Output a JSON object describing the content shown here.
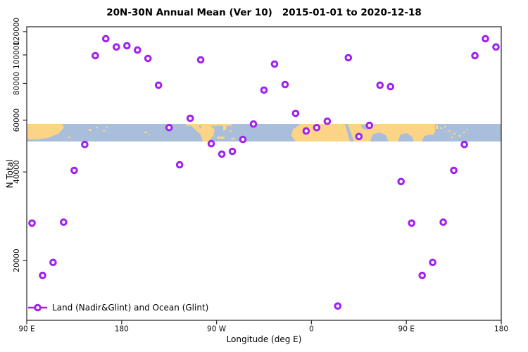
{
  "chart_data": {
    "type": "scatter",
    "title": "20N-30N Annual Mean (Ver 10)   2015-01-01 to 2020-12-18",
    "xlabel": "Longitude (deg E)",
    "ylabel": "N Total",
    "x_axis": {
      "range": [
        90,
        540
      ],
      "wraps_longitude": true,
      "ticks": [
        {
          "pos": 90,
          "label": "90 E"
        },
        {
          "pos": 180,
          "label": "180"
        },
        {
          "pos": 270,
          "label": "90 W"
        },
        {
          "pos": 360,
          "label": "0"
        },
        {
          "pos": 450,
          "label": "90 E"
        },
        {
          "pos": 540,
          "label": "180"
        }
      ]
    },
    "y_axis": {
      "scale": "log",
      "ticks": [
        20000,
        40000,
        60000,
        80000,
        100000,
        120000
      ],
      "approx_range": [
        12500,
        126000
      ],
      "grid": false
    },
    "legend": {
      "label": "Land (Nadir&Glint) and Ocean (Glint)",
      "position": "bottom-left",
      "symbol": "line-with-open-circle"
    },
    "points": [
      {
        "lon": 95,
        "n": 26800
      },
      {
        "lon": 105,
        "n": 17800
      },
      {
        "lon": 115,
        "n": 19700
      },
      {
        "lon": 125,
        "n": 27000
      },
      {
        "lon": 135,
        "n": 40500
      },
      {
        "lon": 145,
        "n": 49600
      },
      {
        "lon": 155,
        "n": 99400
      },
      {
        "lon": 165,
        "n": 113500
      },
      {
        "lon": 175,
        "n": 106400
      },
      {
        "lon": 185,
        "n": 107400
      },
      {
        "lon": 195,
        "n": 103900
      },
      {
        "lon": 205,
        "n": 97300
      },
      {
        "lon": 215,
        "n": 78900
      },
      {
        "lon": 225,
        "n": 56600
      },
      {
        "lon": 235,
        "n": 42300
      },
      {
        "lon": 245,
        "n": 60900
      },
      {
        "lon": 255,
        "n": 96200
      },
      {
        "lon": 265,
        "n": 49900
      },
      {
        "lon": 275,
        "n": 46000
      },
      {
        "lon": 285,
        "n": 47000
      },
      {
        "lon": 295,
        "n": 51600
      },
      {
        "lon": 305,
        "n": 58200
      },
      {
        "lon": 315,
        "n": 75900
      },
      {
        "lon": 325,
        "n": 93100
      },
      {
        "lon": 335,
        "n": 79300
      },
      {
        "lon": 345,
        "n": 63300
      },
      {
        "lon": 355,
        "n": 55100
      },
      {
        "lon": 365,
        "n": 56600
      },
      {
        "lon": 375,
        "n": 59500
      },
      {
        "lon": 385,
        "n": 14000
      },
      {
        "lon": 395,
        "n": 97800
      },
      {
        "lon": 405,
        "n": 52800
      },
      {
        "lon": 415,
        "n": 57600
      },
      {
        "lon": 425,
        "n": 78900
      },
      {
        "lon": 435,
        "n": 78000
      },
      {
        "lon": 445,
        "n": 37100
      },
      {
        "lon": 455,
        "n": 26800
      },
      {
        "lon": 465,
        "n": 17800
      },
      {
        "lon": 475,
        "n": 19700
      },
      {
        "lon": 485,
        "n": 27000
      },
      {
        "lon": 495,
        "n": 40500
      },
      {
        "lon": 505,
        "n": 49600
      },
      {
        "lon": 515,
        "n": 99400
      },
      {
        "lon": 525,
        "n": 113500
      },
      {
        "lon": 535,
        "n": 106400
      }
    ],
    "map_band": {
      "description": "20N-30N latitude world map strip drawn across plot",
      "value_top": 58000,
      "value_bottom": 50500,
      "ocean_color": "#a9bedb",
      "land_color": "#fbd585",
      "land_polys": [
        [
          [
            38,
            176
          ],
          [
            88,
            176
          ],
          [
            91,
            181
          ],
          [
            83,
            190
          ],
          [
            68,
            196
          ],
          [
            52,
            198
          ],
          [
            38,
            198
          ]
        ],
        [
          [
            271,
            175.7
          ],
          [
            279,
            175.7
          ],
          [
            292,
            191
          ],
          [
            288,
            194
          ],
          [
            271,
            178
          ]
        ],
        [
          [
            286,
            179
          ],
          [
            298,
            178
          ],
          [
            305,
            184
          ],
          [
            303,
            193
          ],
          [
            296,
            201
          ],
          [
            288,
            201
          ],
          [
            284,
            188
          ]
        ],
        [
          [
            427,
            176
          ],
          [
            618,
            176
          ],
          [
            618,
            187
          ],
          [
            611,
            197
          ],
          [
            604,
            201
          ],
          [
            420,
            201
          ],
          [
            414,
            193
          ],
          [
            416,
            184
          ]
        ],
        [
          [
            317,
            176
          ],
          [
            322,
            176
          ],
          [
            321,
            185
          ],
          [
            317,
            185
          ]
        ]
      ],
      "ocean_overlay_polys": [
        [
          [
            490,
            176
          ],
          [
            494,
            176
          ],
          [
            503,
            201
          ],
          [
            497,
            201
          ]
        ],
        [
          [
            513,
            177
          ],
          [
            526,
            177
          ],
          [
            522,
            185
          ],
          [
            514,
            182
          ]
        ],
        [
          [
            526,
            201
          ],
          [
            529,
            191
          ],
          [
            539,
            188
          ],
          [
            548,
            192
          ],
          [
            552,
            201
          ]
        ],
        [
          [
            565,
            201
          ],
          [
            569,
            191
          ],
          [
            578,
            189
          ],
          [
            585,
            194
          ],
          [
            588,
            201
          ]
        ],
        [
          [
            599,
            201
          ],
          [
            603,
            193
          ],
          [
            612,
            191
          ],
          [
            618,
            195
          ],
          [
            618,
            201
          ]
        ]
      ],
      "land_rects": [
        [
          126,
          183,
          4,
          3
        ],
        [
          136,
          180,
          3,
          2
        ],
        [
          146,
          185,
          3,
          2
        ],
        [
          151,
          179,
          2,
          2
        ],
        [
          97,
          194,
          3,
          2
        ],
        [
          205,
          187,
          4,
          2
        ],
        [
          211,
          190,
          2,
          2
        ],
        [
          264,
          176,
          65,
          2.6
        ],
        [
          308,
          194,
          11,
          3
        ],
        [
          326,
          185,
          3,
          2
        ],
        [
          328,
          196,
          6,
          2
        ],
        [
          619,
          178,
          3,
          5
        ],
        [
          625,
          181,
          3,
          2
        ],
        [
          631,
          179,
          3,
          2
        ],
        [
          637,
          185,
          3,
          2
        ],
        [
          644,
          189,
          3,
          2
        ],
        [
          651,
          192,
          4,
          2
        ],
        [
          658,
          187,
          3,
          2
        ],
        [
          640,
          194,
          3,
          2
        ],
        [
          663,
          183,
          2,
          2
        ]
      ]
    },
    "colors": {
      "point_stroke": "#a020f0",
      "point_fill": "#ffffff",
      "axis": "#333333",
      "tick_text": "#111111",
      "background": "#ffffff"
    }
  }
}
